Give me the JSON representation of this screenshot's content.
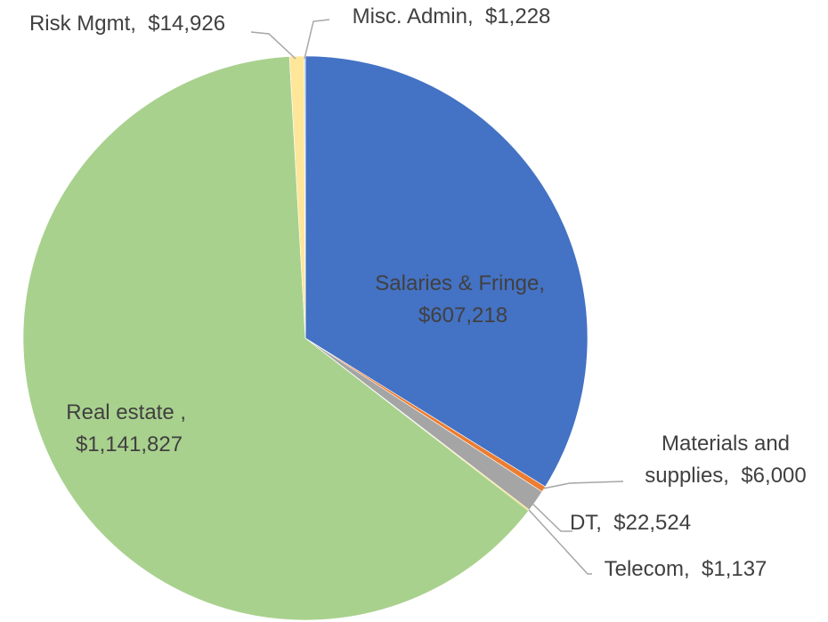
{
  "chart_data": {
    "type": "pie",
    "categories": [
      "Salaries & Fringe,",
      "Materials and supplies,",
      "DT,",
      "Telecom,",
      "Real estate ,",
      "Risk Mgmt,",
      "Misc. Admin,"
    ],
    "values": [
      607218,
      6000,
      22524,
      1137,
      1141827,
      14926,
      1228
    ],
    "value_labels": [
      "$607,218",
      "$6,000",
      "$22,524",
      "$1,137",
      "$1,141,827",
      "$14,926",
      "$1,228"
    ],
    "colors": [
      "#4472c4",
      "#ed7d31",
      "#a5a5a5",
      "#ffc000",
      "#a9d18e",
      "#ffe699",
      "#9dc3e6"
    ]
  }
}
